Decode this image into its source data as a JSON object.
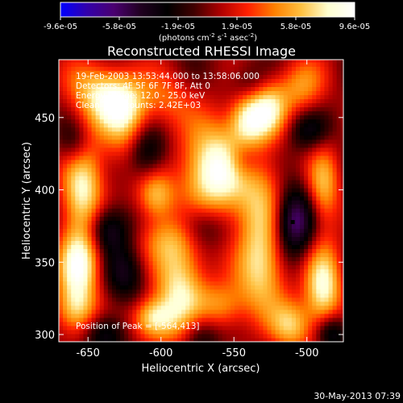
{
  "colorbar": {
    "tick_labels": [
      "-9.6e-05",
      "-5.8e-05",
      "-1.9e-05",
      "1.9e-05",
      "5.8e-05",
      "9.6e-05"
    ],
    "units_line": "(photons cm",
    "units_exp1": "-2",
    "units_mid": " s",
    "units_exp2": "-1",
    "units_tail": " asec",
    "units_exp3": "-2",
    "units_close": ")",
    "colors": [
      "#0000ff",
      "#3300aa",
      "#4a0070",
      "#200020",
      "#000000",
      "#400000",
      "#b00000",
      "#ff2000",
      "#ff8000",
      "#ffc040",
      "#ffffd0",
      "#ffffff"
    ]
  },
  "chart_data": {
    "type": "heatmap",
    "title": "Reconstructed RHESSI Image",
    "xlabel": "Heliocentric X (arcsec)",
    "ylabel": "Heliocentric Y (arcsec)",
    "xlim": [
      -670,
      -475
    ],
    "ylim": [
      295,
      490
    ],
    "x_ticks": [
      -650,
      -600,
      -550,
      -500
    ],
    "y_ticks": [
      300,
      350,
      400,
      450
    ],
    "x_tick_labels": [
      "-650",
      "-600",
      "-550",
      "-500"
    ],
    "y_tick_labels": [
      "300",
      "350",
      "400",
      "450"
    ],
    "clim": [
      -9.6e-05,
      9.6e-05
    ],
    "peak_position": [
      -564,
      413
    ],
    "annotations": [
      "19-Feb-2003 13:53:44.000 to 13:58:06.000",
      "Detectors: 4F 5F 6F 7F 8F, Att 0",
      "Energy Range: 12.0 - 25.0 keV",
      "Clean    Total counts: 2.42E+03"
    ],
    "peak_label": "Position of Peak = [-564,413]"
  },
  "timestamp": "30-May-2013 07:39"
}
